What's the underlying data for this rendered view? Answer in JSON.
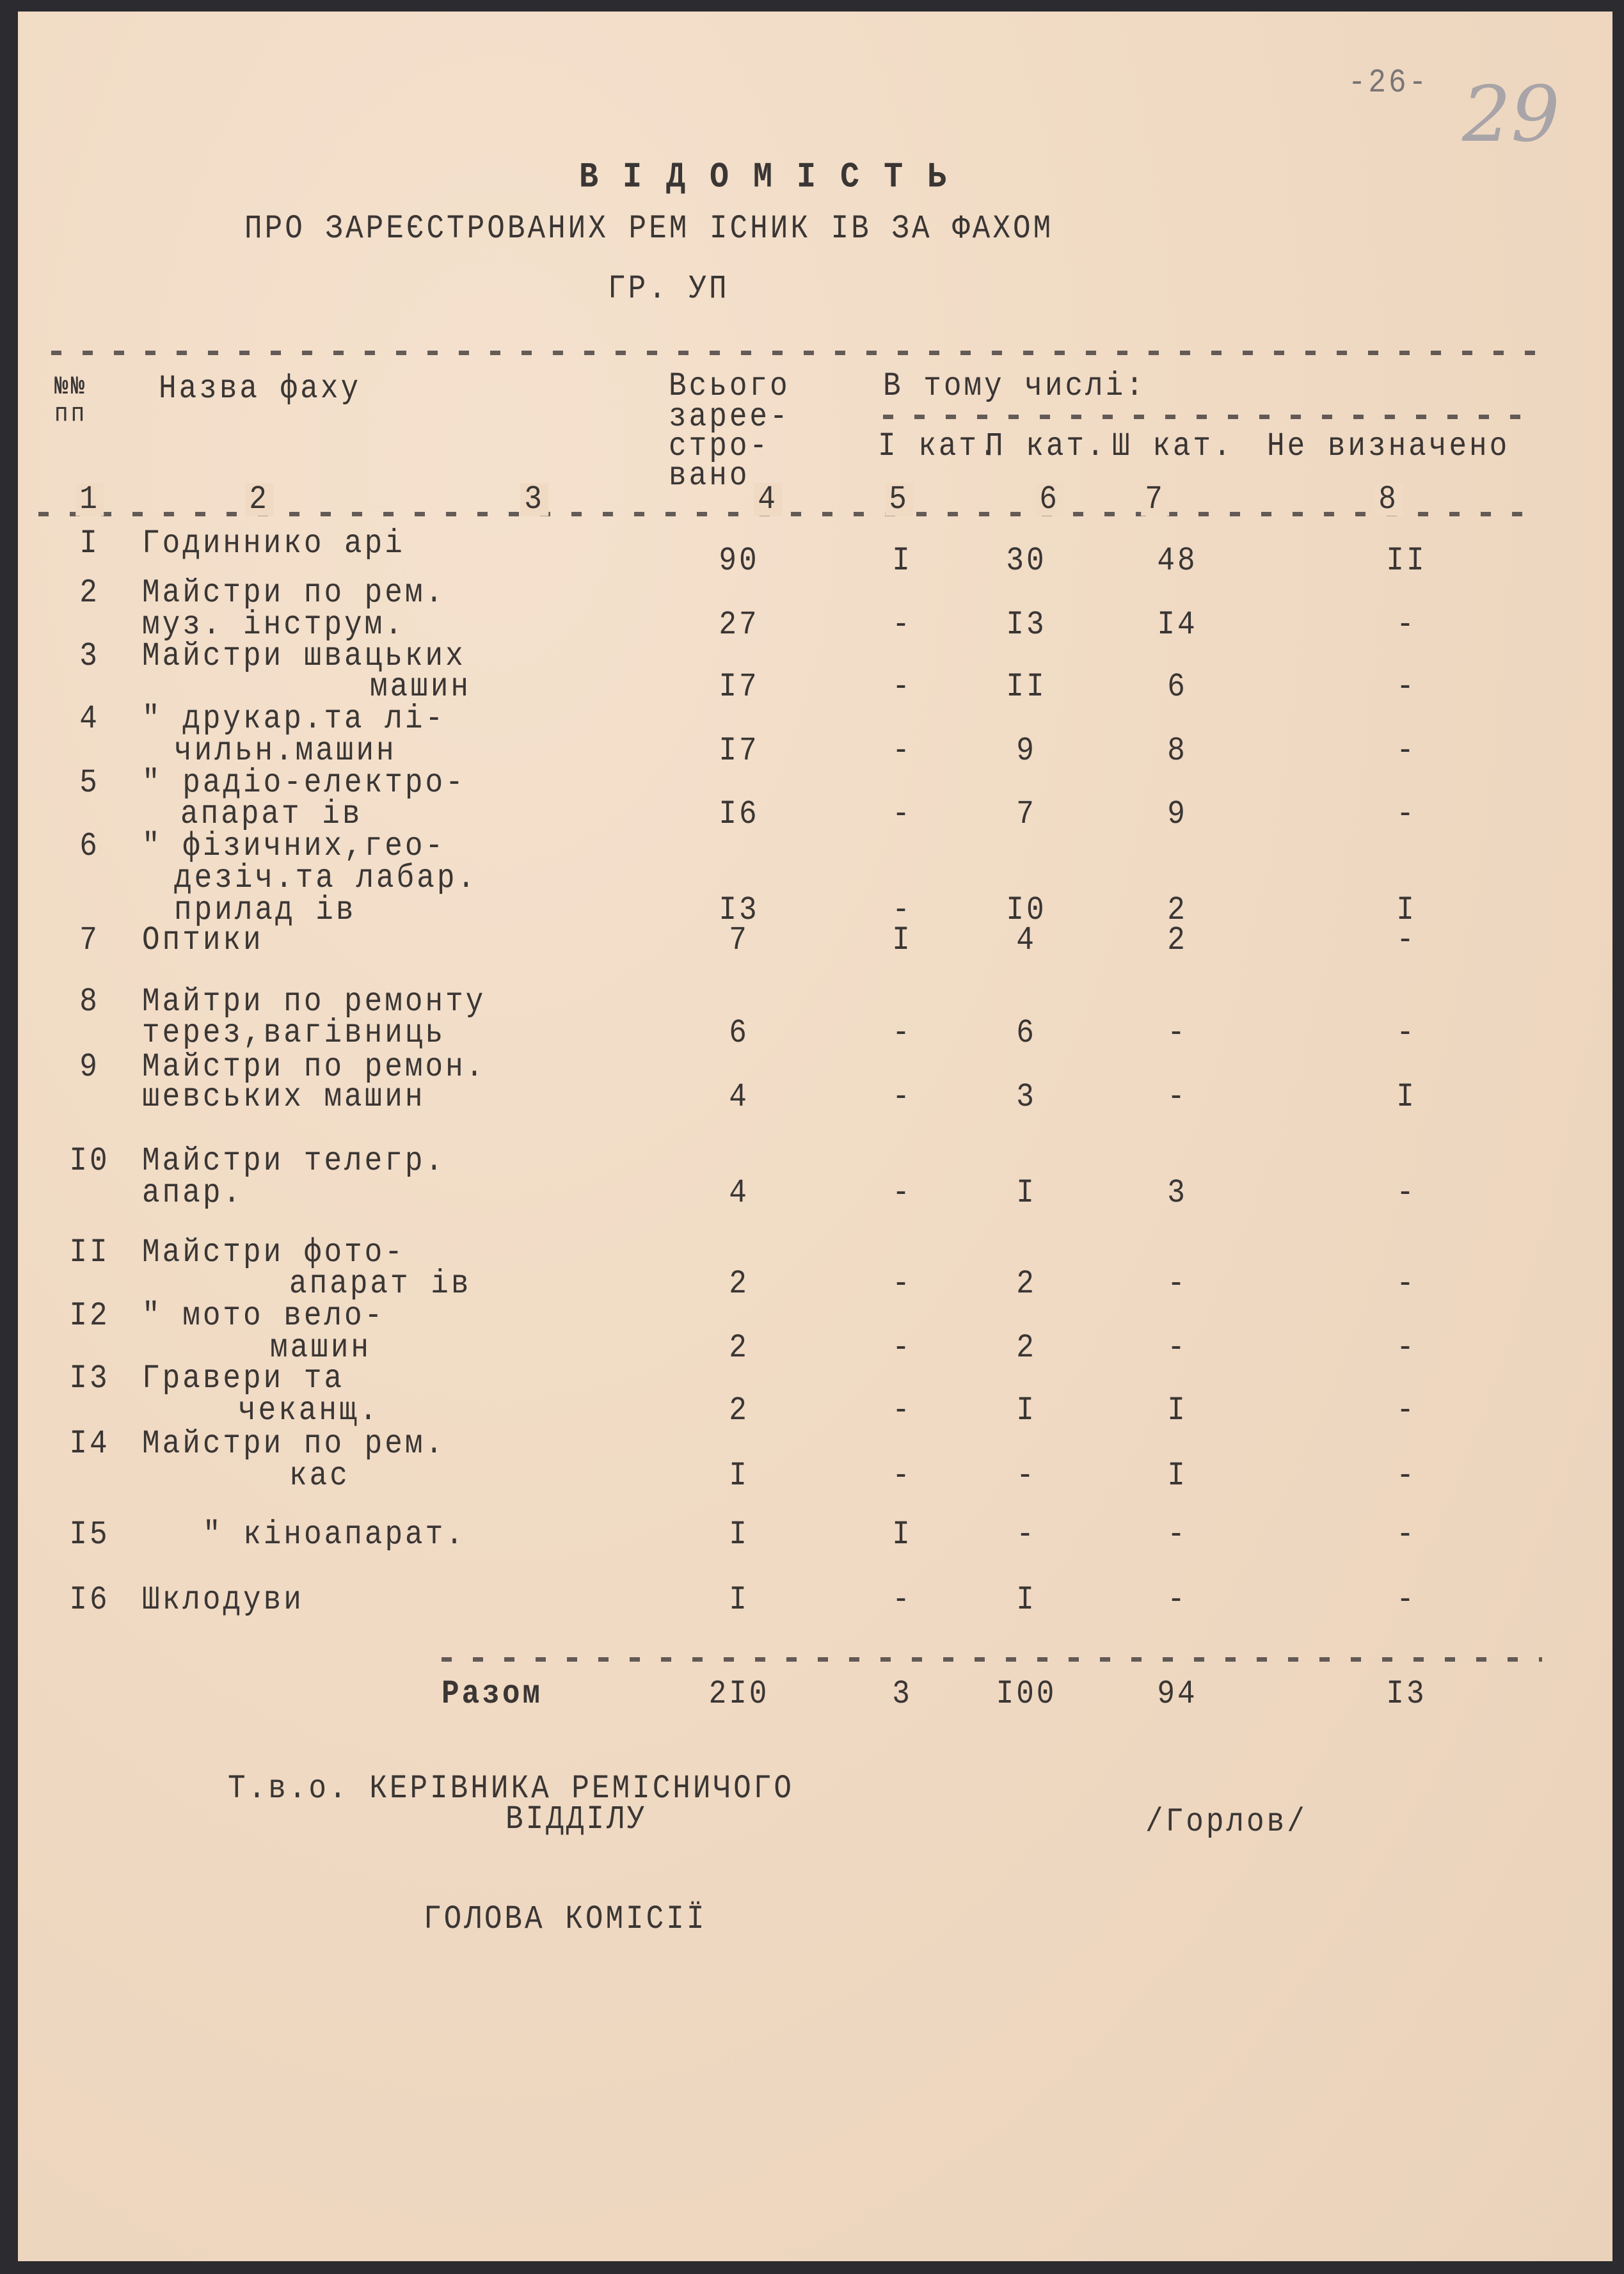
{
  "page_number": "-26-",
  "archive_number_handwritten": "29",
  "title": "В І Д О М І С Т Ь",
  "subtitle": "ПРО ЗАРЕЄСТРОВАНИХ РЕМ ІСНИК ІВ ЗА ФАХОМ",
  "subtitle2": "ГР. УП",
  "table": {
    "headers": {
      "num": [
        "№№",
        "пп"
      ],
      "name": "Назва фаху",
      "total": [
        "Всього",
        "зарее-",
        "стро-",
        "вано"
      ],
      "group": "В тому числі:",
      "cats": [
        "І кат.",
        "П кат.",
        "Ш кат.",
        "Не визначено"
      ]
    },
    "column_numbers": [
      "1",
      "2",
      "3",
      "4",
      "5",
      "6",
      "7",
      "8"
    ],
    "rows": [
      {
        "n": "I",
        "name": [
          "Годиннико арі"
        ],
        "total": "90",
        "c1": "I",
        "c2": "30",
        "c3": "48",
        "c4": "II"
      },
      {
        "n": "2",
        "name": [
          "Майстри по рем.",
          "муз. інструм."
        ],
        "total": "27",
        "c1": "-",
        "c2": "I3",
        "c3": "I4",
        "c4": "-"
      },
      {
        "n": "3",
        "name": [
          "Майстри швацьких",
          "машин"
        ],
        "total": "I7",
        "c1": "-",
        "c2": "II",
        "c3": "6",
        "c4": "-"
      },
      {
        "n": "4",
        "name": [
          "\" друкар.та лі-",
          "чильн.машин"
        ],
        "total": "I7",
        "c1": "-",
        "c2": "9",
        "c3": "8",
        "c4": "-"
      },
      {
        "n": "5",
        "name": [
          "\" радіо-електро-",
          "апарат ів"
        ],
        "total": "I6",
        "c1": "-",
        "c2": "7",
        "c3": "9",
        "c4": "-"
      },
      {
        "n": "6",
        "name": [
          "\" фізичних,гео-",
          "дезіч.та лабар.",
          "прилад ів"
        ],
        "total": "I3",
        "c1": "-",
        "c2": "I0",
        "c3": "2",
        "c4": "I"
      },
      {
        "n": "7",
        "name": [
          "Оптики"
        ],
        "total": "7",
        "c1": "I",
        "c2": "4",
        "c3": "2",
        "c4": "-"
      },
      {
        "n": "8",
        "name": [
          "Майтри по ремонту",
          "терез,вагівниць"
        ],
        "total": "6",
        "c1": "-",
        "c2": "6",
        "c3": "-",
        "c4": "-"
      },
      {
        "n": "9",
        "name": [
          "Майстри по ремон.",
          "шевських машин"
        ],
        "total": "4",
        "c1": "-",
        "c2": "3",
        "c3": "-",
        "c4": "I"
      },
      {
        "n": "I0",
        "name": [
          "Майстри телегр.",
          "апар."
        ],
        "total": "4",
        "c1": "-",
        "c2": "I",
        "c3": "3",
        "c4": "-"
      },
      {
        "n": "II",
        "name": [
          "Майстри фото-",
          "апарат ів"
        ],
        "total": "2",
        "c1": "-",
        "c2": "2",
        "c3": "-",
        "c4": "-"
      },
      {
        "n": "I2",
        "name": [
          "\" мото вело-",
          "машин"
        ],
        "total": "2",
        "c1": "-",
        "c2": "2",
        "c3": "-",
        "c4": "-"
      },
      {
        "n": "I3",
        "name": [
          "Гравери та",
          "чеканщ."
        ],
        "total": "2",
        "c1": "-",
        "c2": "I",
        "c3": "I",
        "c4": "-"
      },
      {
        "n": "I4",
        "name": [
          "Майстри по рем.",
          "кас"
        ],
        "total": "I",
        "c1": "-",
        "c2": "-",
        "c3": "I",
        "c4": "-"
      },
      {
        "n": "I5",
        "name": [
          "\" кіноапарат."
        ],
        "total": "I",
        "c1": "I",
        "c2": "-",
        "c3": "-",
        "c4": "-"
      },
      {
        "n": "I6",
        "name": [
          "Шклодуви"
        ],
        "total": "I",
        "c1": "-",
        "c2": "I",
        "c3": "-",
        "c4": "-"
      }
    ],
    "totals": {
      "label": "Разом",
      "total": "2I0",
      "c1": "3",
      "c2": "I00",
      "c3": "94",
      "c4": "I3"
    }
  },
  "signature": {
    "line1": "Т.в.о. КЕРІВНИКА РЕМІСНИЧОГО",
    "line2": "ВІДДІЛУ",
    "name": "/Горлов/",
    "chair": "ГОЛОВА КОМІСІЇ"
  }
}
